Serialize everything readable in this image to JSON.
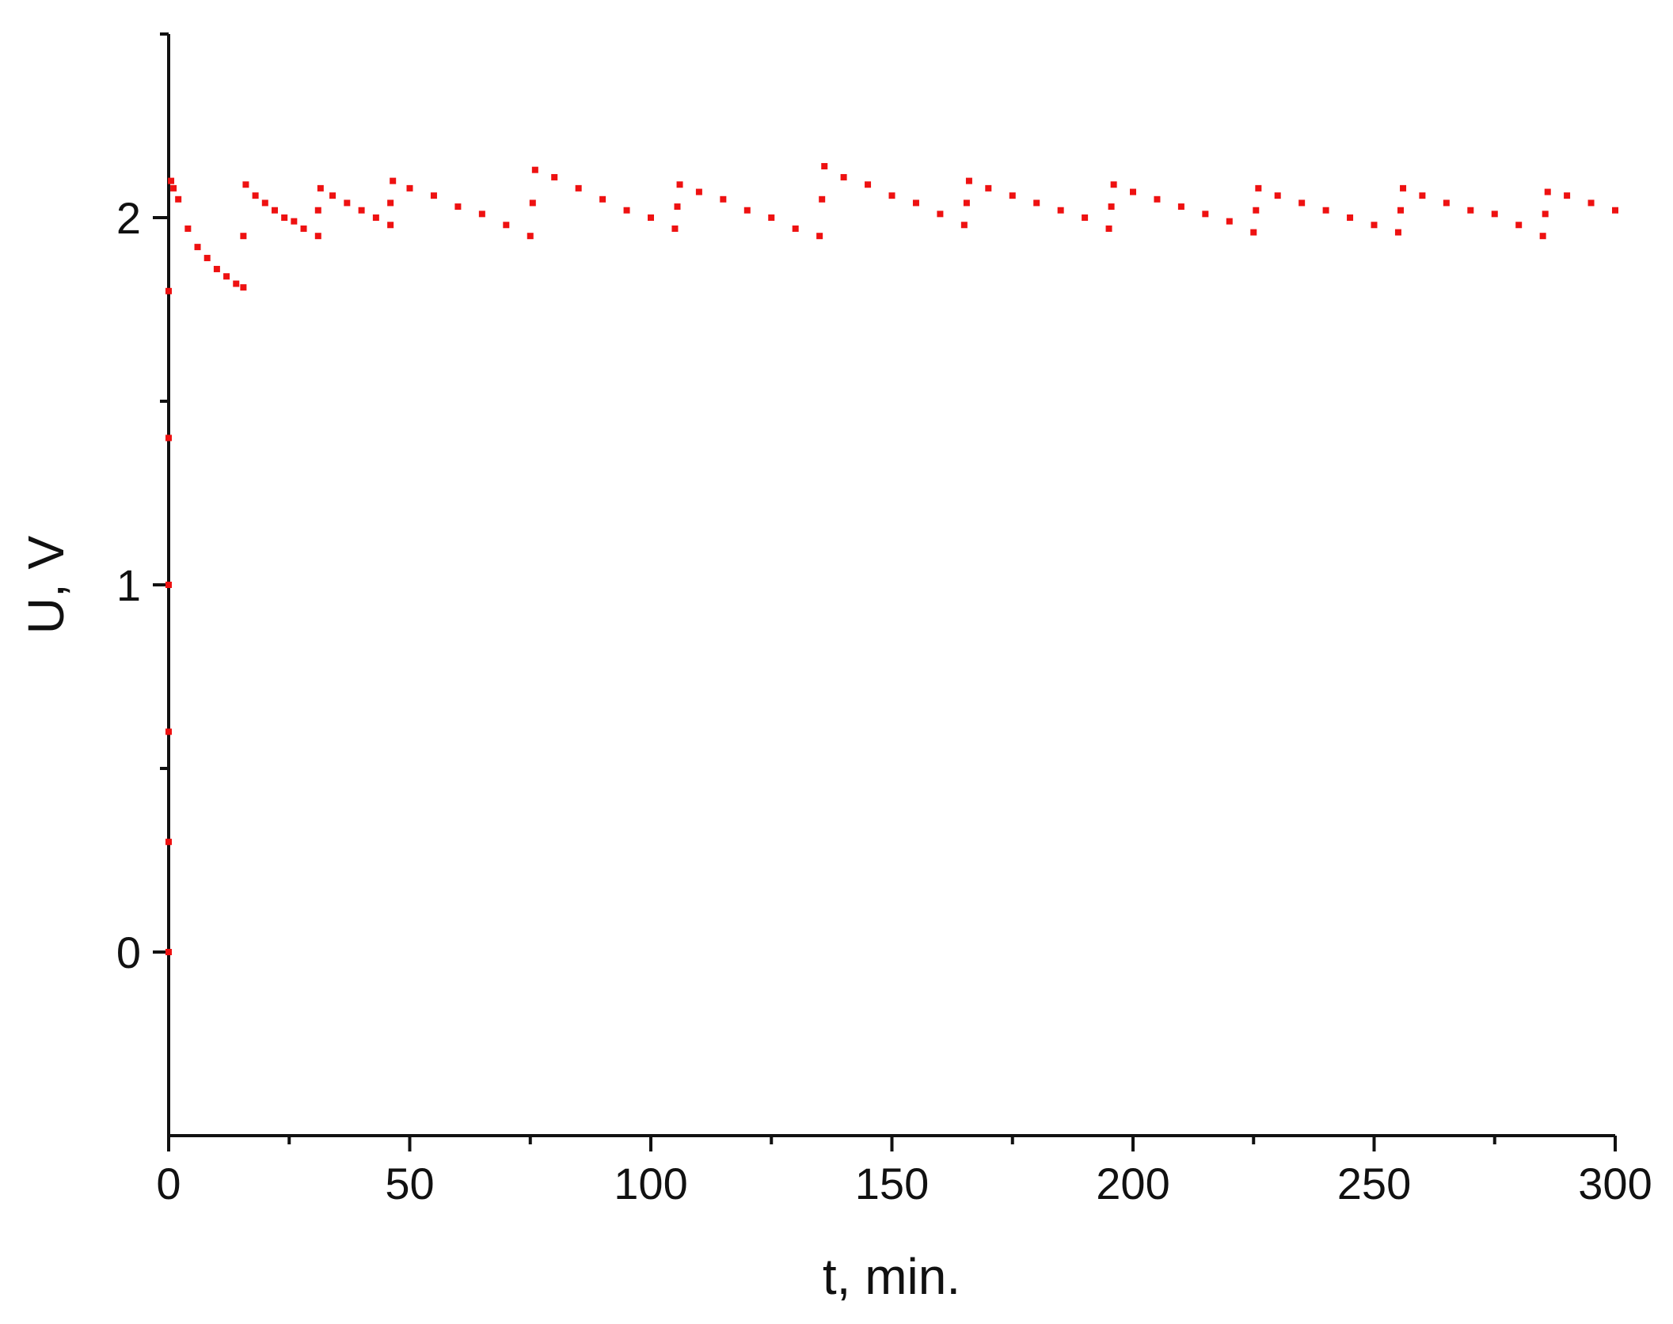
{
  "chart_data": {
    "type": "scatter",
    "x_label": "t, min.",
    "y_label": "U, V",
    "xlim": [
      0,
      300
    ],
    "xticks": [
      0,
      50,
      100,
      150,
      200,
      250,
      300
    ],
    "xminor_ticks": [
      25,
      75,
      125,
      175,
      225,
      275
    ],
    "ylim": [
      -0.5,
      2.5
    ],
    "yticks": [
      0,
      1,
      2
    ],
    "yminor_ticks": [
      0.5,
      1.5,
      2.5
    ],
    "grid": false,
    "series": [
      {
        "color": "#ee1111",
        "x": [
          0,
          0,
          0,
          0,
          0,
          0,
          0.5,
          1,
          2,
          4,
          6,
          8,
          10,
          12,
          14,
          15.5,
          15.5,
          16,
          18,
          20,
          22,
          24,
          26,
          28,
          31,
          31,
          31.5,
          34,
          37,
          40,
          43,
          46,
          46,
          46.5,
          50,
          55,
          60,
          65,
          70,
          75,
          75.5,
          76,
          80,
          85,
          90,
          95,
          100,
          105,
          105.5,
          106,
          110,
          115,
          120,
          125,
          130,
          135,
          135.5,
          136,
          140,
          145,
          150,
          155,
          160,
          165,
          165.5,
          166,
          170,
          175,
          180,
          185,
          190,
          195,
          195.5,
          196,
          200,
          205,
          210,
          215,
          220,
          225,
          225.5,
          226,
          230,
          235,
          240,
          245,
          250,
          255,
          255.5,
          256,
          260,
          265,
          270,
          275,
          280,
          285,
          285.5,
          286,
          290,
          295,
          300
        ],
        "values": [
          0,
          0.3,
          0.6,
          1.0,
          1.4,
          1.8,
          2.1,
          2.08,
          2.05,
          1.97,
          1.92,
          1.89,
          1.86,
          1.84,
          1.82,
          1.81,
          1.95,
          2.09,
          2.06,
          2.04,
          2.02,
          2.0,
          1.99,
          1.97,
          1.95,
          2.02,
          2.08,
          2.06,
          2.04,
          2.02,
          2.0,
          1.98,
          2.04,
          2.1,
          2.08,
          2.06,
          2.03,
          2.01,
          1.98,
          1.95,
          2.04,
          2.13,
          2.11,
          2.08,
          2.05,
          2.02,
          2.0,
          1.97,
          2.03,
          2.09,
          2.07,
          2.05,
          2.02,
          2.0,
          1.97,
          1.95,
          2.05,
          2.14,
          2.11,
          2.09,
          2.06,
          2.04,
          2.01,
          1.98,
          2.04,
          2.1,
          2.08,
          2.06,
          2.04,
          2.02,
          2.0,
          1.97,
          2.03,
          2.09,
          2.07,
          2.05,
          2.03,
          2.01,
          1.99,
          1.96,
          2.02,
          2.08,
          2.06,
          2.04,
          2.02,
          2.0,
          1.98,
          1.96,
          2.02,
          2.08,
          2.06,
          2.04,
          2.02,
          2.01,
          1.98,
          1.95,
          2.01,
          2.07,
          2.06,
          2.04,
          2.02
        ]
      }
    ]
  }
}
